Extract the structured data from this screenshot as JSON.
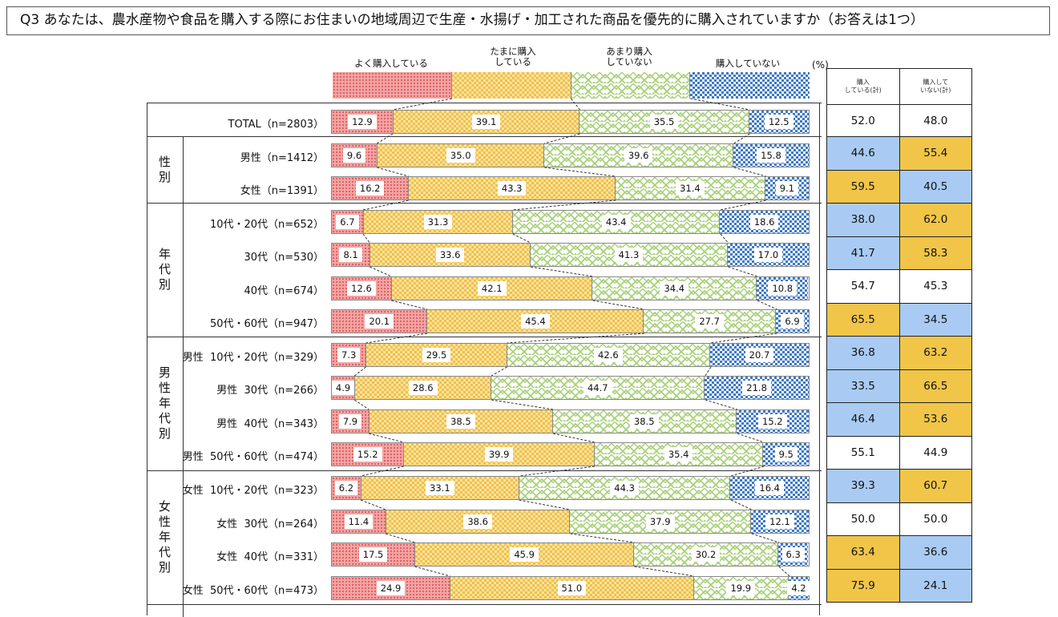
{
  "title": "Q3  あなたは、農水産物や食品を購入する際にお住まいの地域周辺で生産・水揚げ・加工された商品を優先的に購入されていますか（お答えは1つ）",
  "legend": {
    "items": [
      {
        "label": "よく購入している",
        "pattern": "red",
        "color": "#e86b6b"
      },
      {
        "label": "たまに購入\nしている",
        "pattern": "yellow",
        "color": "#f0c04a"
      },
      {
        "label": "あまり購入\nしていない",
        "pattern": "green",
        "color": "#a9d17a"
      },
      {
        "label": "購入していない",
        "pattern": "blue",
        "color": "#3d78c6"
      }
    ],
    "unit": "(%)"
  },
  "summary_headers": [
    "購入\nしている(計)",
    "購入して\nいない(計)"
  ],
  "groups": [
    {
      "label": "",
      "rows": [
        0
      ]
    },
    {
      "label": "性別",
      "rows": [
        1,
        2
      ]
    },
    {
      "label": "年代別",
      "rows": [
        3,
        4,
        5,
        6
      ]
    },
    {
      "label": "男性年代別",
      "rows": [
        7,
        8,
        9,
        10
      ]
    },
    {
      "label": "女性年代別",
      "rows": [
        11,
        12,
        13,
        14
      ]
    }
  ],
  "rows": [
    {
      "label": "TOTAL（n=2803）",
      "values": [
        "12.9",
        "39.1",
        "35.5",
        "12.5"
      ],
      "sum_buy": "52.0",
      "sum_not": "48.0",
      "buy_color": "white",
      "not_color": "white"
    },
    {
      "label": "男性（n=1412）",
      "values": [
        "9.6",
        "35.0",
        "39.6",
        "15.8"
      ],
      "sum_buy": "44.6",
      "sum_not": "55.4",
      "buy_color": "blue",
      "not_color": "yellow"
    },
    {
      "label": "女性（n=1391）",
      "values": [
        "16.2",
        "43.3",
        "31.4",
        "9.1"
      ],
      "sum_buy": "59.5",
      "sum_not": "40.5",
      "buy_color": "yellow",
      "not_color": "blue"
    },
    {
      "label": "10代・20代（n=652）",
      "values": [
        "6.7",
        "31.3",
        "43.4",
        "18.6"
      ],
      "sum_buy": "38.0",
      "sum_not": "62.0",
      "buy_color": "blue",
      "not_color": "yellow"
    },
    {
      "label": "30代（n=530）",
      "values": [
        "8.1",
        "33.6",
        "41.3",
        "17.0"
      ],
      "sum_buy": "41.7",
      "sum_not": "58.3",
      "buy_color": "blue",
      "not_color": "yellow"
    },
    {
      "label": "40代（n=674）",
      "values": [
        "12.6",
        "42.1",
        "34.4",
        "10.8"
      ],
      "sum_buy": "54.7",
      "sum_not": "45.3",
      "buy_color": "white",
      "not_color": "white"
    },
    {
      "label": "50代・60代（n=947）",
      "values": [
        "20.1",
        "45.4",
        "27.7",
        "6.9"
      ],
      "sum_buy": "65.5",
      "sum_not": "34.5",
      "buy_color": "yellow",
      "not_color": "blue"
    },
    {
      "label": "男性  10代・20代（n=329）",
      "values": [
        "7.3",
        "29.5",
        "42.6",
        "20.7"
      ],
      "sum_buy": "36.8",
      "sum_not": "63.2",
      "buy_color": "blue",
      "not_color": "yellow"
    },
    {
      "label": "男性  30代（n=266）",
      "values": [
        "4.9",
        "28.6",
        "44.7",
        "21.8"
      ],
      "sum_buy": "33.5",
      "sum_not": "66.5",
      "buy_color": "blue",
      "not_color": "yellow"
    },
    {
      "label": "男性  40代（n=343）",
      "values": [
        "7.9",
        "38.5",
        "38.5",
        "15.2"
      ],
      "sum_buy": "46.4",
      "sum_not": "53.6",
      "buy_color": "blue",
      "not_color": "yellow"
    },
    {
      "label": "男性  50代・60代（n=474）",
      "values": [
        "15.2",
        "39.9",
        "35.4",
        "9.5"
      ],
      "sum_buy": "55.1",
      "sum_not": "44.9",
      "buy_color": "white",
      "not_color": "white"
    },
    {
      "label": "女性  10代・20代（n=323）",
      "values": [
        "6.2",
        "33.1",
        "44.3",
        "16.4"
      ],
      "sum_buy": "39.3",
      "sum_not": "60.7",
      "buy_color": "blue",
      "not_color": "yellow"
    },
    {
      "label": "女性  30代（n=264）",
      "values": [
        "11.4",
        "38.6",
        "37.9",
        "12.1"
      ],
      "sum_buy": "50.0",
      "sum_not": "50.0",
      "buy_color": "white",
      "not_color": "white"
    },
    {
      "label": "女性  40代（n=331）",
      "values": [
        "17.5",
        "45.9",
        "30.2",
        "6.3"
      ],
      "sum_buy": "63.4",
      "sum_not": "36.6",
      "buy_color": "yellow",
      "not_color": "blue"
    },
    {
      "label": "女性  50代・60代（n=473）",
      "values": [
        "24.9",
        "51.0",
        "19.9",
        "4.2"
      ],
      "sum_buy": "75.9",
      "sum_not": "24.1",
      "buy_color": "yellow",
      "not_color": "blue"
    }
  ],
  "chart_data": {
    "type": "bar",
    "orientation": "horizontal-stacked-100",
    "title": "Q3 あなたは、農水産物や食品を購入する際にお住まいの地域周辺で生産・水揚げ・加工された商品を優先的に購入されていますか（お答えは1つ）",
    "xlabel": "(%)",
    "ylabel": "",
    "xlim": [
      0,
      100
    ],
    "grid": false,
    "legend_position": "top",
    "categories": [
      "TOTAL（n=2803）",
      "男性（n=1412）",
      "女性（n=1391）",
      "10代・20代（n=652）",
      "30代（n=530）",
      "40代（n=674）",
      "50代・60代（n=947）",
      "男性 10代・20代（n=329）",
      "男性 30代（n=266）",
      "男性 40代（n=343）",
      "男性 50代・60代（n=474）",
      "女性 10代・20代（n=323）",
      "女性 30代（n=264）",
      "女性 40代（n=331）",
      "女性 50代・60代（n=473）"
    ],
    "series": [
      {
        "name": "よく購入している",
        "values": [
          12.9,
          9.6,
          16.2,
          6.7,
          8.1,
          12.6,
          20.1,
          7.3,
          4.9,
          7.9,
          15.2,
          6.2,
          11.4,
          17.5,
          24.9
        ]
      },
      {
        "name": "たまに購入している",
        "values": [
          39.1,
          35.0,
          43.3,
          31.3,
          33.6,
          42.1,
          45.4,
          29.5,
          28.6,
          38.5,
          39.9,
          33.1,
          38.6,
          45.9,
          51.0
        ]
      },
      {
        "name": "あまり購入していない",
        "values": [
          35.5,
          39.6,
          31.4,
          43.4,
          41.3,
          34.4,
          27.7,
          42.6,
          44.7,
          38.5,
          35.4,
          44.3,
          37.9,
          30.2,
          19.9
        ]
      },
      {
        "name": "購入していない",
        "values": [
          12.5,
          15.8,
          9.1,
          18.6,
          17.0,
          10.8,
          6.9,
          20.7,
          21.8,
          15.2,
          9.5,
          16.4,
          12.1,
          6.3,
          4.2
        ]
      }
    ],
    "summary_table": {
      "columns": [
        "購入している(計)",
        "購入していない(計)"
      ],
      "values": [
        [
          52.0,
          48.0
        ],
        [
          44.6,
          55.4
        ],
        [
          59.5,
          40.5
        ],
        [
          38.0,
          62.0
        ],
        [
          41.7,
          58.3
        ],
        [
          54.7,
          45.3
        ],
        [
          65.5,
          34.5
        ],
        [
          36.8,
          63.2
        ],
        [
          33.5,
          66.5
        ],
        [
          46.4,
          53.6
        ],
        [
          55.1,
          44.9
        ],
        [
          39.3,
          60.7
        ],
        [
          50.0,
          50.0
        ],
        [
          63.4,
          36.6
        ],
        [
          75.9,
          24.1
        ]
      ]
    }
  }
}
